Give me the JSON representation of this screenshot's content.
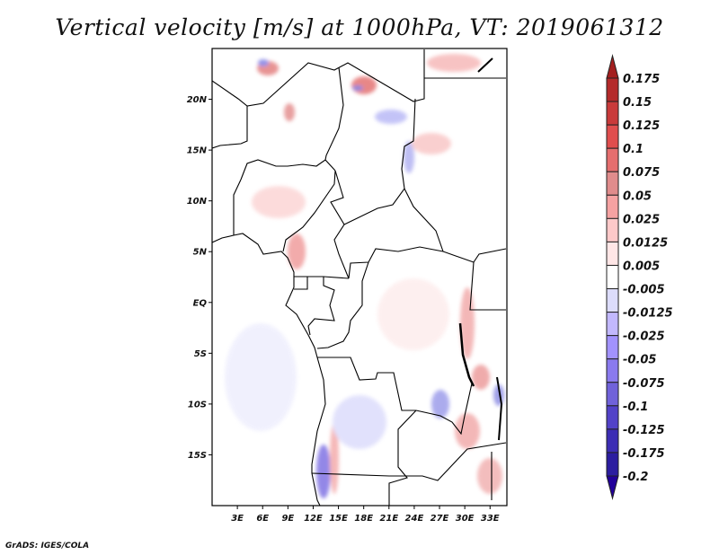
{
  "title": "Vertical velocity [m/s] at 1000hPa, VT: 2019061312",
  "map": {
    "lat_labels": [
      "20N",
      "15N",
      "10N",
      "5N",
      "EQ",
      "5S",
      "10S",
      "15S"
    ],
    "lat_values": [
      20,
      15,
      10,
      5,
      0,
      -5,
      -10,
      -15
    ],
    "lon_labels": [
      "3E",
      "6E",
      "9E",
      "12E",
      "15E",
      "18E",
      "21E",
      "24E",
      "27E",
      "30E",
      "33E"
    ],
    "lon_values": [
      3,
      6,
      9,
      12,
      15,
      18,
      21,
      24,
      27,
      30,
      33
    ],
    "lon_range": [
      0,
      35
    ],
    "lat_range": [
      -20,
      25
    ]
  },
  "colorbar": {
    "labels": [
      "0.175",
      "0.15",
      "0.125",
      "0.1",
      "0.075",
      "0.05",
      "0.025",
      "0.0125",
      "0.005",
      "-0.005",
      "-0.0125",
      "-0.025",
      "-0.05",
      "-0.075",
      "-0.1",
      "-0.125",
      "-0.175",
      "-0.2"
    ],
    "top_color": "#a31f1f",
    "colors": [
      "#b42a2a",
      "#c93a3a",
      "#e04e4e",
      "#e56e6e",
      "#e08c8c",
      "#f5a2a2",
      "#fdc9c9",
      "#ffe6e6",
      "#ffffff",
      "#dcdcfb",
      "#c2b8fd",
      "#a292fd",
      "#8a7aee",
      "#7062da",
      "#5242c8",
      "#3c2db4",
      "#2c1da0"
    ],
    "bottom_color": "#22009a"
  },
  "credit": "GrADS: IGES/COLA"
}
